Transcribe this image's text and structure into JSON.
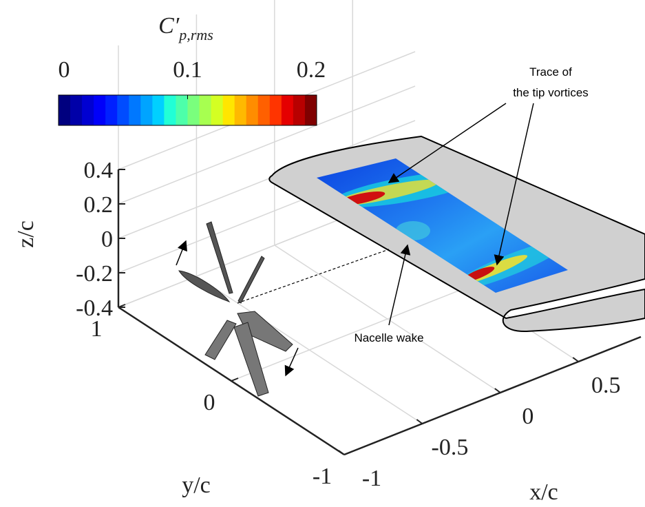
{
  "chart_data": {
    "type": "surface3d",
    "colorbar": {
      "label": {
        "symbol": "C′",
        "subscript": "p,rms"
      },
      "lim": [
        0,
        0.2
      ],
      "ticks": [
        0,
        0.1,
        0.2
      ],
      "colormap": [
        "#00007f",
        "#0000a8",
        "#0000d2",
        "#0000fa",
        "#0020ff",
        "#004cff",
        "#0078ff",
        "#00a4ff",
        "#00d0ff",
        "#21ffd6",
        "#4dffaa",
        "#7aff7d",
        "#a7ff50",
        "#d4ff23",
        "#ffe600",
        "#ffb900",
        "#ff8d00",
        "#ff6000",
        "#ff3400",
        "#e50000",
        "#b80000",
        "#800000"
      ]
    },
    "xlabel": "x/c",
    "ylabel": "y/c",
    "zlabel": "z/c",
    "xlim": [
      -1,
      0.9
    ],
    "ylim": [
      -1,
      1
    ],
    "zlim": [
      -0.4,
      0.4
    ],
    "xticks": [
      -1,
      -0.5,
      0,
      0.5
    ],
    "yticks": [
      -1,
      0,
      1
    ],
    "zticks": [
      -0.4,
      -0.2,
      0,
      0.2,
      0.4
    ],
    "grid": true,
    "annotations": [
      {
        "lines": [
          "Trace of",
          "the tip vortices"
        ]
      },
      {
        "lines": [
          "Nacelle wake"
        ]
      }
    ]
  }
}
